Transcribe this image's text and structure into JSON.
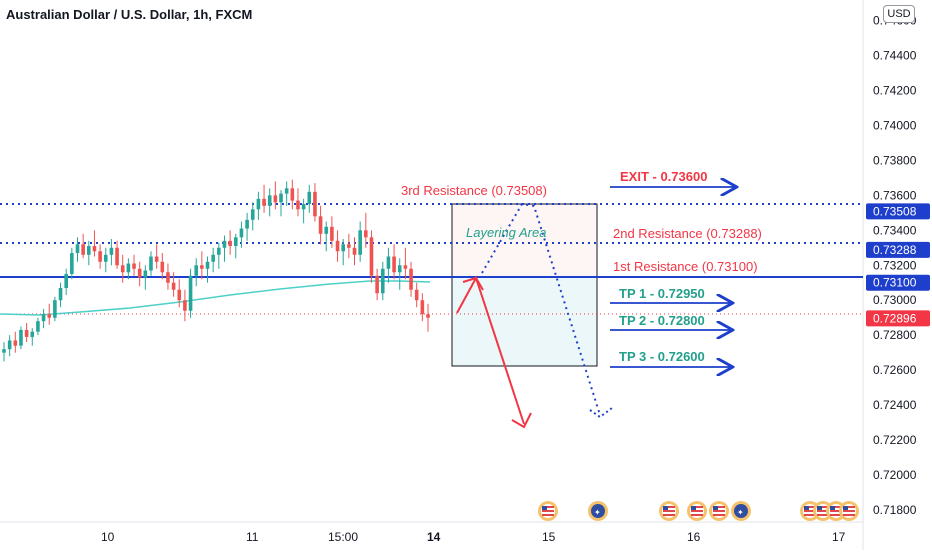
{
  "header": {
    "title": "Australian Dollar / U.S. Dollar, 1h, FXCM",
    "currency": "USD"
  },
  "price_axis": {
    "ticks": [
      "0.71800",
      "0.72000",
      "0.72200",
      "0.72400",
      "0.72600",
      "0.72800",
      "0.73000",
      "0.73200",
      "0.73400",
      "0.73600",
      "0.73800",
      "0.74000",
      "0.74200",
      "0.74400",
      "0.74600"
    ],
    "top_partial": "0.74600"
  },
  "time_axis": {
    "ticks": [
      "10",
      "11",
      "15:00",
      "14",
      "15",
      "16",
      "17"
    ]
  },
  "price_labels": [
    {
      "name": "res3-price-tag",
      "text": "0.73508",
      "value": 0.73508,
      "color": "#1e3fcc"
    },
    {
      "name": "res2-price-tag",
      "text": "0.73288",
      "value": 0.73288,
      "color": "#1e3fcc"
    },
    {
      "name": "res1-price-tag",
      "text": "0.73100",
      "value": 0.731,
      "color": "#1e3fcc"
    },
    {
      "name": "last-price-tag",
      "text": "0.72896",
      "value": 0.72896,
      "color": "#f23645"
    }
  ],
  "annotations": {
    "res3": "3rd Resistance (0.73508)",
    "res2": "2nd Resistance (0.73288)",
    "res1": "1st Resistance (0.73100)",
    "exit": "EXIT - 0.73600",
    "tp1": "TP 1 - 0.72950",
    "tp2": "TP 2 - 0.72800",
    "tp3": "TP 3 - 0.72600",
    "layering": "Layering Area"
  },
  "colors": {
    "resistance_red": "#f23645",
    "level_blue": "#1e3fcc",
    "bull": "#26a69a",
    "bear": "#ef5350",
    "ma": "#4dd0c8",
    "teal_text": "#22a08c"
  },
  "chart_data": {
    "type": "candlestick",
    "title": "Australian Dollar / U.S. Dollar, 1h, FXCM",
    "ylim": [
      0.7172,
      0.7462
    ],
    "levels": [
      {
        "label": "3rd Resistance",
        "value": 0.73508,
        "style": "dotted"
      },
      {
        "label": "2nd Resistance",
        "value": 0.73288,
        "style": "dotted"
      },
      {
        "label": "1st Resistance",
        "value": 0.731,
        "style": "solid"
      },
      {
        "label": "Last price",
        "value": 0.72896,
        "style": "dotted"
      }
    ],
    "targets": [
      {
        "label": "EXIT",
        "value": 0.736
      },
      {
        "label": "TP 1",
        "value": 0.7295
      },
      {
        "label": "TP 2",
        "value": 0.728
      },
      {
        "label": "TP 3",
        "value": 0.726
      }
    ],
    "ohlc": [
      [
        0.727,
        0.7276,
        0.7265,
        0.7272
      ],
      [
        0.7272,
        0.728,
        0.7268,
        0.7277
      ],
      [
        0.7277,
        0.7282,
        0.727,
        0.7274
      ],
      [
        0.7274,
        0.7285,
        0.7272,
        0.7283
      ],
      [
        0.7283,
        0.7287,
        0.7276,
        0.7279
      ],
      [
        0.7279,
        0.7284,
        0.7274,
        0.7282
      ],
      [
        0.7282,
        0.729,
        0.728,
        0.7288
      ],
      [
        0.7288,
        0.7295,
        0.7284,
        0.7292
      ],
      [
        0.7292,
        0.7298,
        0.7286,
        0.729
      ],
      [
        0.729,
        0.7302,
        0.7288,
        0.73
      ],
      [
        0.73,
        0.731,
        0.7296,
        0.7307
      ],
      [
        0.7307,
        0.7318,
        0.7303,
        0.7315
      ],
      [
        0.7315,
        0.733,
        0.7312,
        0.7327
      ],
      [
        0.7327,
        0.7336,
        0.7322,
        0.7332
      ],
      [
        0.7332,
        0.7338,
        0.7324,
        0.7326
      ],
      [
        0.7326,
        0.7334,
        0.732,
        0.7331
      ],
      [
        0.7331,
        0.734,
        0.7325,
        0.7328
      ],
      [
        0.7328,
        0.7332,
        0.7318,
        0.7322
      ],
      [
        0.7322,
        0.733,
        0.7316,
        0.7326
      ],
      [
        0.7326,
        0.7335,
        0.732,
        0.733
      ],
      [
        0.733,
        0.7334,
        0.7318,
        0.732
      ],
      [
        0.732,
        0.7326,
        0.731,
        0.7316
      ],
      [
        0.7316,
        0.7324,
        0.7312,
        0.7321
      ],
      [
        0.7321,
        0.7326,
        0.7314,
        0.7318
      ],
      [
        0.7318,
        0.7322,
        0.7308,
        0.7313
      ],
      [
        0.7313,
        0.732,
        0.7306,
        0.7317
      ],
      [
        0.7317,
        0.7328,
        0.7314,
        0.7325
      ],
      [
        0.7325,
        0.7332,
        0.7318,
        0.7322
      ],
      [
        0.7322,
        0.7327,
        0.7312,
        0.7316
      ],
      [
        0.7316,
        0.7321,
        0.7306,
        0.731
      ],
      [
        0.731,
        0.7316,
        0.7302,
        0.7306
      ],
      [
        0.7306,
        0.7312,
        0.7296,
        0.73
      ],
      [
        0.73,
        0.7306,
        0.7288,
        0.7294
      ],
      [
        0.7294,
        0.7318,
        0.729,
        0.7314
      ],
      [
        0.7314,
        0.7324,
        0.7308,
        0.732
      ],
      [
        0.732,
        0.7328,
        0.7312,
        0.7318
      ],
      [
        0.7318,
        0.7325,
        0.731,
        0.7322
      ],
      [
        0.7322,
        0.733,
        0.7316,
        0.7326
      ],
      [
        0.7326,
        0.7333,
        0.7318,
        0.733
      ],
      [
        0.733,
        0.7337,
        0.7322,
        0.7334
      ],
      [
        0.7334,
        0.734,
        0.7326,
        0.7331
      ],
      [
        0.7331,
        0.7338,
        0.7324,
        0.7336
      ],
      [
        0.7336,
        0.7345,
        0.733,
        0.7341
      ],
      [
        0.7341,
        0.735,
        0.7334,
        0.7346
      ],
      [
        0.7346,
        0.7356,
        0.734,
        0.7352
      ],
      [
        0.7352,
        0.7362,
        0.7346,
        0.7358
      ],
      [
        0.7358,
        0.7366,
        0.735,
        0.7354
      ],
      [
        0.7354,
        0.7364,
        0.7348,
        0.736
      ],
      [
        0.736,
        0.7368,
        0.7352,
        0.7356
      ],
      [
        0.7356,
        0.7363,
        0.7348,
        0.7361
      ],
      [
        0.7361,
        0.7368,
        0.7354,
        0.7364
      ],
      [
        0.7364,
        0.7369,
        0.7352,
        0.7357
      ],
      [
        0.7357,
        0.7364,
        0.7348,
        0.7352
      ],
      [
        0.7352,
        0.7358,
        0.7344,
        0.7355
      ],
      [
        0.7355,
        0.7366,
        0.735,
        0.7362
      ],
      [
        0.7362,
        0.7367,
        0.7345,
        0.7348
      ],
      [
        0.7348,
        0.7354,
        0.7332,
        0.7338
      ],
      [
        0.7338,
        0.7345,
        0.7328,
        0.7342
      ],
      [
        0.7342,
        0.7348,
        0.733,
        0.7334
      ],
      [
        0.7334,
        0.734,
        0.7322,
        0.7328
      ],
      [
        0.7328,
        0.7335,
        0.732,
        0.7332
      ],
      [
        0.7332,
        0.7338,
        0.7324,
        0.733
      ],
      [
        0.733,
        0.7336,
        0.732,
        0.7326
      ],
      [
        0.7326,
        0.7345,
        0.7322,
        0.734
      ],
      [
        0.734,
        0.735,
        0.733,
        0.7336
      ],
      [
        0.7336,
        0.734,
        0.731,
        0.7314
      ],
      [
        0.7314,
        0.7318,
        0.73,
        0.7304
      ],
      [
        0.7304,
        0.7322,
        0.73,
        0.7318
      ],
      [
        0.7318,
        0.733,
        0.731,
        0.7325
      ],
      [
        0.7325,
        0.7332,
        0.7312,
        0.7316
      ],
      [
        0.7316,
        0.7324,
        0.7306,
        0.732
      ],
      [
        0.732,
        0.733,
        0.7312,
        0.7318
      ],
      [
        0.7318,
        0.7322,
        0.7302,
        0.7306
      ],
      [
        0.7306,
        0.731,
        0.7296,
        0.73
      ],
      [
        0.73,
        0.7304,
        0.7288,
        0.7292
      ],
      [
        0.7292,
        0.7298,
        0.7282,
        0.729
      ]
    ]
  }
}
